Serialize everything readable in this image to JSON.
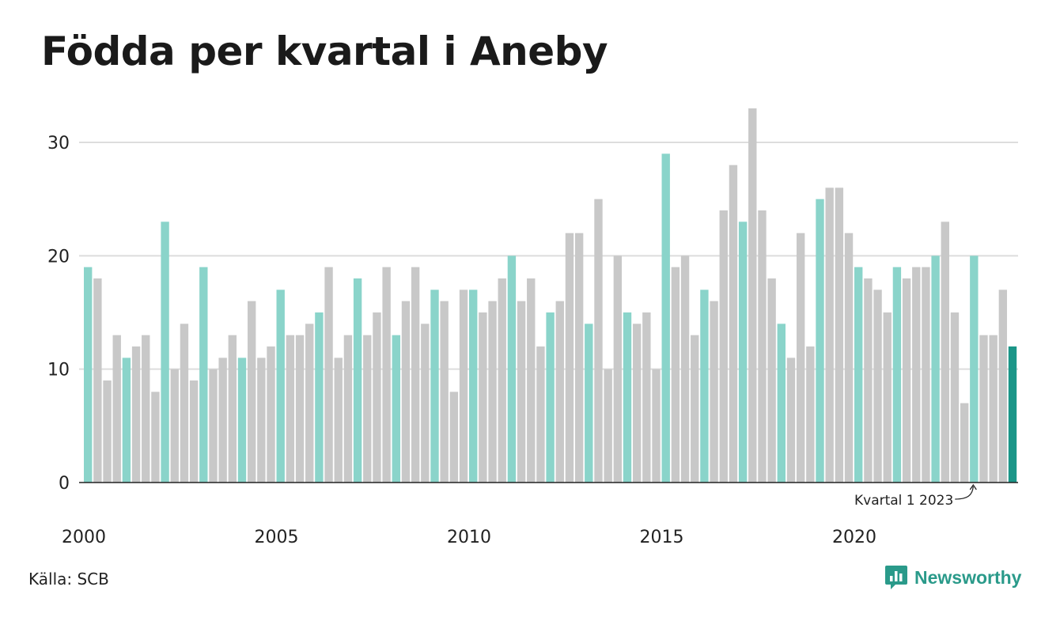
{
  "title": "Födda per kvartal i Aneby",
  "source": "Källa: SCB",
  "brand": "Newsworthy",
  "annotation": "Kvartal 1 2023",
  "colors": {
    "q1": "#8ad4ca",
    "other": "#c8c8c8",
    "highlight": "#1b9688",
    "grid": "#dddddd",
    "axis": "#222222",
    "brand": "#2a9a8a"
  },
  "chart_data": {
    "type": "bar",
    "title": "Födda per kvartal i Aneby",
    "xlabel": "",
    "ylabel": "",
    "ylim": [
      0,
      33
    ],
    "yticks": [
      0,
      10,
      20,
      30
    ],
    "xtick_labels": [
      "2000",
      "2005",
      "2010",
      "2015",
      "2020"
    ],
    "start_year": 2000,
    "grid": true,
    "legend": "none",
    "highlight_last": true,
    "values": [
      19,
      18,
      9,
      13,
      11,
      12,
      13,
      8,
      23,
      10,
      14,
      9,
      19,
      10,
      11,
      13,
      11,
      16,
      11,
      12,
      17,
      13,
      13,
      14,
      15,
      19,
      11,
      13,
      18,
      13,
      15,
      19,
      13,
      16,
      19,
      14,
      17,
      16,
      8,
      17,
      17,
      15,
      16,
      18,
      20,
      16,
      18,
      12,
      15,
      16,
      22,
      22,
      14,
      25,
      10,
      20,
      15,
      14,
      15,
      10,
      29,
      19,
      20,
      13,
      17,
      16,
      24,
      28,
      23,
      33,
      24,
      18,
      14,
      11,
      22,
      12,
      25,
      26,
      26,
      22,
      19,
      18,
      17,
      15,
      19,
      18,
      19,
      19,
      20,
      23,
      15,
      7,
      20,
      13,
      13,
      17,
      12
    ]
  }
}
